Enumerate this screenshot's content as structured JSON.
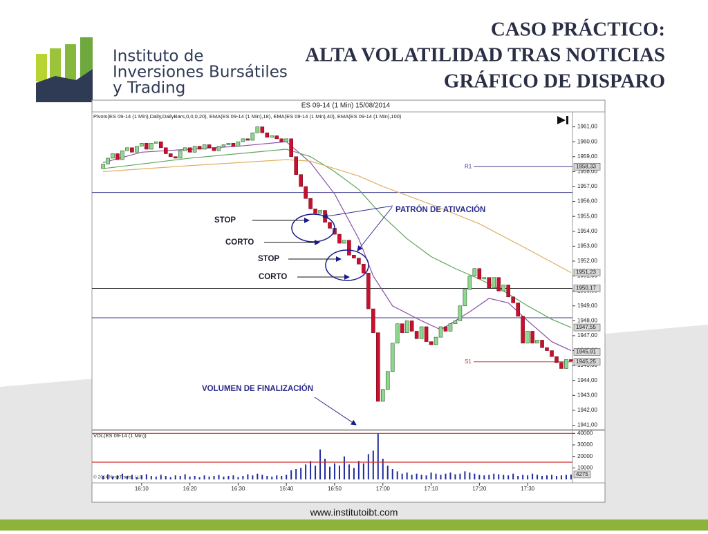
{
  "header": {
    "lines": [
      "CASO PRÁCTICO:",
      "ALTA VOLATILIDAD TRAS NOTICIAS",
      "GRÁFICO DE DISPARO"
    ]
  },
  "logo": {
    "lines": [
      "Instituto de",
      "Inversiones Bursátiles",
      "y Trading"
    ]
  },
  "footer": {
    "url": "www.institutoibt.com"
  },
  "chart_data": {
    "type": "candlestick",
    "title": "ES 09-14 (1 Min)  15/08/2014",
    "indicators": "Pivots(ES 09-14 (1 Min),Daily,DailyBars,0,0,0,20), EMA(ES 09-14 (1 Min),18), EMA(ES 09-14 (1 Min),40), EMA(ES 09-14 (1 Min),100)",
    "x": [
      2,
      3,
      4,
      5,
      6,
      7,
      8,
      9,
      10,
      11,
      12,
      13,
      14,
      15,
      16,
      17,
      18,
      19,
      20,
      21,
      22,
      23,
      24,
      25,
      26,
      27,
      28,
      29,
      30,
      31,
      32,
      33,
      34,
      35,
      36,
      37,
      38,
      39,
      40,
      41,
      42,
      43,
      44,
      45,
      46,
      47,
      48,
      49,
      50,
      51,
      52,
      53,
      54,
      55,
      56,
      57,
      58,
      59,
      60,
      61,
      62,
      63,
      64,
      65,
      66,
      67,
      68,
      69,
      70,
      71,
      72,
      73,
      74,
      75,
      76,
      77,
      78,
      79,
      80,
      81,
      82,
      83,
      84,
      85,
      86,
      87,
      88,
      89,
      90,
      91,
      92,
      93,
      94,
      95,
      96,
      97,
      98,
      99
    ],
    "open": [
      1958.2,
      1958.5,
      1958.9,
      1959.2,
      1958.8,
      1959.4,
      1959.6,
      1959.3,
      1959.7,
      1959.9,
      1959.5,
      1959.9,
      1960.0,
      1959.6,
      1959.2,
      1959.0,
      1958.9,
      1959.4,
      1959.6,
      1959.3,
      1959.7,
      1959.5,
      1959.8,
      1959.6,
      1959.4,
      1959.7,
      1959.8,
      1959.9,
      1959.7,
      1960.0,
      1960.2,
      1960.1,
      1960.6,
      1961.0,
      1960.6,
      1960.3,
      1960.4,
      1960.2,
      1960.0,
      1960.2,
      1959.0,
      1957.8,
      1957.0,
      1956.2,
      1955.5,
      1955.2,
      1955.4,
      1954.6,
      1954.2,
      1953.8,
      1953.2,
      1953.4,
      1952.4,
      1952.2,
      1951.8,
      1951.2,
      1948.8,
      1947.2,
      1942.6,
      1943.4,
      1944.6,
      1946.5,
      1947.8,
      1947.2,
      1948.0,
      1947.3,
      1946.8,
      1947.6,
      1946.6,
      1946.4,
      1946.9,
      1947.6,
      1947.3,
      1947.8,
      1948.0,
      1949.0,
      1950.1,
      1951.0,
      1951.5,
      1950.8,
      1950.9,
      1950.2,
      1950.9,
      1950.0,
      1950.4,
      1949.6,
      1949.2,
      1948.3,
      1946.5,
      1947.3,
      1946.5,
      1946.7,
      1946.2,
      1946.0,
      1945.6,
      1945.2,
      1944.8,
      1945.4
    ],
    "close": [
      1958.5,
      1958.9,
      1959.2,
      1958.8,
      1959.4,
      1959.6,
      1959.3,
      1959.7,
      1959.9,
      1959.5,
      1959.9,
      1960.0,
      1959.6,
      1959.2,
      1959.0,
      1958.9,
      1959.4,
      1959.6,
      1959.3,
      1959.7,
      1959.5,
      1959.8,
      1959.6,
      1959.4,
      1959.7,
      1959.8,
      1959.9,
      1959.7,
      1960.0,
      1960.2,
      1960.1,
      1960.6,
      1961.0,
      1960.6,
      1960.3,
      1960.4,
      1960.2,
      1960.0,
      1960.2,
      1959.0,
      1957.8,
      1957.0,
      1956.2,
      1955.5,
      1955.2,
      1955.4,
      1954.6,
      1954.2,
      1953.8,
      1953.2,
      1953.4,
      1952.4,
      1952.2,
      1951.8,
      1951.2,
      1948.8,
      1947.2,
      1942.6,
      1943.4,
      1944.6,
      1946.5,
      1947.8,
      1947.2,
      1948.0,
      1947.3,
      1946.8,
      1947.6,
      1946.6,
      1946.4,
      1946.9,
      1947.6,
      1947.3,
      1947.8,
      1948.0,
      1949.0,
      1950.1,
      1951.0,
      1951.5,
      1950.8,
      1950.9,
      1950.2,
      1950.9,
      1950.0,
      1950.4,
      1949.6,
      1949.2,
      1948.3,
      1946.5,
      1947.3,
      1946.5,
      1946.7,
      1946.2,
      1946.0,
      1945.6,
      1945.2,
      1944.8,
      1945.4,
      1945.3
    ],
    "up_color": "#8fd88f",
    "down_color": "#c8102e",
    "series": [
      {
        "name": "EMA 18",
        "color": "#8a4fa8",
        "x": [
          2,
          10,
          20,
          30,
          40,
          45,
          50,
          55,
          58,
          62,
          68,
          72,
          78,
          82,
          86,
          90,
          95,
          99
        ],
        "values": [
          1958.6,
          1959.3,
          1959.5,
          1959.7,
          1960.0,
          1958.6,
          1956.5,
          1953.5,
          1951.0,
          1949.0,
          1948.0,
          1947.4,
          1948.6,
          1949.5,
          1949.2,
          1948.0,
          1946.6,
          1946.0
        ]
      },
      {
        "name": "EMA 40",
        "color": "#5aa55a",
        "x": [
          2,
          20,
          40,
          45,
          50,
          55,
          60,
          65,
          70,
          75,
          80,
          85,
          90,
          95,
          99
        ],
        "values": [
          1958.2,
          1958.9,
          1959.5,
          1959.0,
          1958.0,
          1956.8,
          1955.0,
          1953.5,
          1952.3,
          1951.5,
          1950.8,
          1950.0,
          1949.0,
          1948.1,
          1947.55
        ]
      },
      {
        "name": "EMA 100",
        "color": "#e0b060",
        "x": [
          2,
          20,
          40,
          45,
          50,
          55,
          60,
          70,
          80,
          90,
          99
        ],
        "values": [
          1958.0,
          1958.4,
          1958.8,
          1958.7,
          1958.2,
          1957.7,
          1957.0,
          1955.8,
          1954.5,
          1952.8,
          1951.23
        ]
      }
    ],
    "levels": [
      {
        "label": "R1",
        "value": 1958.33,
        "color": "#3b3b8f"
      },
      {
        "label": "S1",
        "value": 1945.25,
        "color": "#c03030"
      }
    ],
    "hlines": [
      {
        "value": 1956.6,
        "color": "#3b3b8f"
      },
      {
        "value": 1948.2,
        "color": "#3b3b8f"
      },
      {
        "value": 1950.17,
        "color": "#333333"
      }
    ],
    "price_tags": [
      {
        "value": 1958.33,
        "label": "1958,33"
      },
      {
        "value": 1951.23,
        "label": "1951,23"
      },
      {
        "value": 1950.17,
        "label": "1950,17"
      },
      {
        "value": 1947.55,
        "label": "1947,55"
      },
      {
        "value": 1945.91,
        "label": "1945,91"
      },
      {
        "value": 1945.25,
        "label": "1945,25"
      }
    ],
    "xlim": [
      -0.3,
      99.3
    ],
    "ylim": [
      1940.7,
      1962.0
    ],
    "xticks": [
      {
        "value": 10,
        "label": "16:10"
      },
      {
        "value": 20,
        "label": "16:20"
      },
      {
        "value": 30,
        "label": "16:30"
      },
      {
        "value": 40,
        "label": "16:40"
      },
      {
        "value": 50,
        "label": "16:50"
      },
      {
        "value": 60,
        "label": "17:00"
      },
      {
        "value": 70,
        "label": "17:10"
      },
      {
        "value": 80,
        "label": "17:20"
      },
      {
        "value": 90,
        "label": "17:30"
      }
    ],
    "yticks": [
      {
        "value": 1941,
        "label": "1941,00"
      },
      {
        "value": 1942,
        "label": "1942,00"
      },
      {
        "value": 1943,
        "label": "1943,00"
      },
      {
        "value": 1944,
        "label": "1944,00"
      },
      {
        "value": 1945,
        "label": "1945,00"
      },
      {
        "value": 1946,
        "label": "1946,00"
      },
      {
        "value": 1947,
        "label": "1947,00"
      },
      {
        "value": 1948,
        "label": "1948,00"
      },
      {
        "value": 1949,
        "label": "1949,00"
      },
      {
        "value": 1950,
        "label": "1950,00"
      },
      {
        "value": 1951,
        "label": "1951,00"
      },
      {
        "value": 1952,
        "label": "1952,00"
      },
      {
        "value": 1953,
        "label": "1953,00"
      },
      {
        "value": 1954,
        "label": "1954,00"
      },
      {
        "value": 1955,
        "label": "1955,00"
      },
      {
        "value": 1956,
        "label": "1956,00"
      },
      {
        "value": 1957,
        "label": "1957,00"
      },
      {
        "value": 1958,
        "label": "1958,00"
      },
      {
        "value": 1959,
        "label": "1959,00"
      },
      {
        "value": 1960,
        "label": "1960,00"
      },
      {
        "value": 1961,
        "label": "1961,00"
      }
    ],
    "volume_title": "VOL(ES 09-14 (1 Min))",
    "volume_color": "#1f2a9c",
    "volume": [
      3000,
      4500,
      2500,
      3500,
      5000,
      3000,
      4000,
      2000,
      3500,
      4500,
      3000,
      2500,
      4000,
      3000,
      2000,
      3500,
      3000,
      4500,
      2500,
      3000,
      2000,
      3500,
      2500,
      3000,
      4000,
      2500,
      3000,
      3500,
      2000,
      3000,
      4500,
      3500,
      5000,
      4000,
      3000,
      2500,
      3500,
      3000,
      4000,
      8000,
      9000,
      10000,
      13000,
      16000,
      12000,
      26000,
      18000,
      11000,
      14000,
      12000,
      20000,
      13000,
      10000,
      16000,
      14000,
      22000,
      25000,
      40000,
      18000,
      12000,
      9000,
      7000,
      5000,
      6000,
      4000,
      5000,
      4000,
      3500,
      6000,
      5000,
      4000,
      5000,
      6000,
      4500,
      5000,
      7000,
      6000,
      5000,
      4000,
      3500,
      4000,
      5000,
      4500,
      4000,
      3500,
      5000,
      3000,
      4000,
      3500,
      5000,
      4000,
      3000,
      3500,
      4000,
      3000,
      3500,
      4000,
      4275
    ],
    "volume_ylim": [
      0,
      42000
    ],
    "volume_yticks": [
      10000,
      20000,
      30000,
      40000
    ],
    "volume_levels": [
      40000,
      15000
    ],
    "copyright": "© 2014 NinjaTrader, LLC",
    "annotations": [
      "STOP",
      "CORTO",
      "STOP",
      "CORTO",
      "PATRÓN DE ATIVACIÓN",
      "VOLUMEN DE FINALIZACIÓN"
    ]
  }
}
